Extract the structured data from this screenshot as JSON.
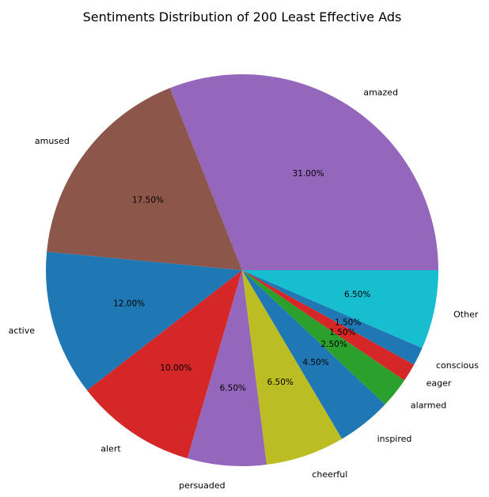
{
  "chart_data": {
    "type": "pie",
    "title": "Sentiments Distribution of 200 Least Effective Ads",
    "slices": [
      {
        "label": "amazed",
        "value": 31.0,
        "pct_label": "31.00%",
        "color": "#9467bd"
      },
      {
        "label": "amused",
        "value": 17.5,
        "pct_label": "17.50%",
        "color": "#8c564b"
      },
      {
        "label": "active",
        "value": 12.0,
        "pct_label": "12.00%",
        "color": "#1f77b4"
      },
      {
        "label": "alert",
        "value": 10.0,
        "pct_label": "10.00%",
        "color": "#d62728"
      },
      {
        "label": "persuaded",
        "value": 6.5,
        "pct_label": "6.50%",
        "color": "#9467bd"
      },
      {
        "label": "cheerful",
        "value": 6.5,
        "pct_label": "6.50%",
        "color": "#bcbd22"
      },
      {
        "label": "inspired",
        "value": 4.5,
        "pct_label": "4.50%",
        "color": "#1f77b4"
      },
      {
        "label": "alarmed",
        "value": 2.5,
        "pct_label": "2.50%",
        "color": "#2ca02c"
      },
      {
        "label": "eager",
        "value": 1.5,
        "pct_label": "1.50%",
        "color": "#d62728"
      },
      {
        "label": "conscious",
        "value": 1.5,
        "pct_label": "1.50%",
        "color": "#1f77b4"
      },
      {
        "label": "Other",
        "value": 6.5,
        "pct_label": "6.50%",
        "color": "#17becf"
      }
    ],
    "start_angle_deg": 0,
    "direction": "counterclockwise",
    "legend": "none"
  }
}
